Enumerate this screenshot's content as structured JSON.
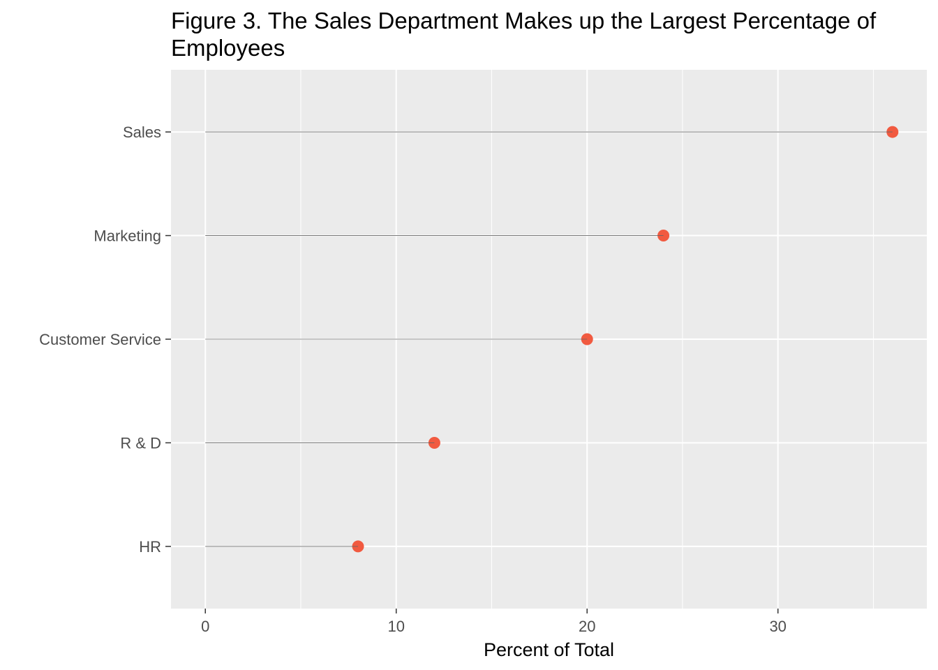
{
  "chart_data": {
    "type": "lollipop",
    "title": "Figure 3. The Sales Department Makes up the Largest Percentage of Employees",
    "xlabel": "Percent of Total",
    "ylabel": "",
    "categories": [
      "Sales",
      "Marketing",
      "Customer Service",
      "R & D",
      "HR"
    ],
    "values": [
      36,
      24,
      20,
      12,
      8
    ],
    "xlim": [
      -1.8,
      37.8
    ],
    "xticks": [
      0,
      10,
      20,
      30
    ],
    "xtick_labels": [
      "0",
      "10",
      "20",
      "30"
    ],
    "grid": true,
    "point_color": "#F15A40",
    "segment_color": "#666666",
    "panel_color": "#EBEBEB"
  }
}
